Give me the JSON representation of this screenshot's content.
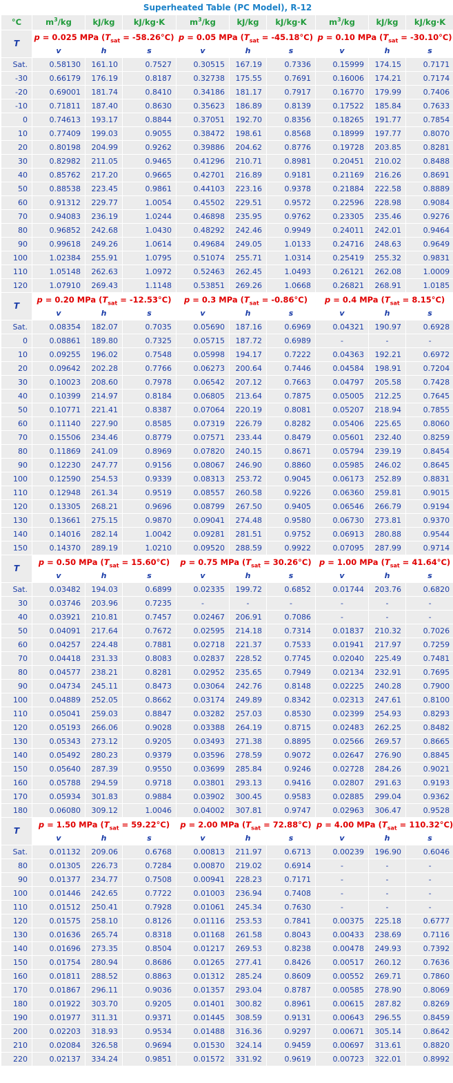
{
  "title": "Superheated Table (PC Model), R-12",
  "units": {
    "temp": "°C",
    "v_base": "m",
    "v_exp": "3",
    "v_tail": "/kg",
    "h": "kJ/kg",
    "s": "kJ/kg·K"
  },
  "labels": {
    "T": "T",
    "v": "v",
    "h": "h",
    "s": "s",
    "p": "p",
    "tsat_T": "T",
    "tsat_sub": "sat"
  },
  "blocks": [
    {
      "pressures": [
        {
          "p": "0.025 MPa",
          "tsat": "-58.26°C"
        },
        {
          "p": "0.05 MPa",
          "tsat": "-45.18°C"
        },
        {
          "p": "0.10 MPa",
          "tsat": "-30.10°C"
        }
      ],
      "rows": [
        [
          "Sat.",
          "0.58130",
          "161.10",
          "0.7527",
          "0.30515",
          "167.19",
          "0.7336",
          "0.15999",
          "174.15",
          "0.7171"
        ],
        [
          "-30",
          "0.66179",
          "176.19",
          "0.8187",
          "0.32738",
          "175.55",
          "0.7691",
          "0.16006",
          "174.21",
          "0.7174"
        ],
        [
          "-20",
          "0.69001",
          "181.74",
          "0.8410",
          "0.34186",
          "181.17",
          "0.7917",
          "0.16770",
          "179.99",
          "0.7406"
        ],
        [
          "-10",
          "0.71811",
          "187.40",
          "0.8630",
          "0.35623",
          "186.89",
          "0.8139",
          "0.17522",
          "185.84",
          "0.7633"
        ],
        [
          "0",
          "0.74613",
          "193.17",
          "0.8844",
          "0.37051",
          "192.70",
          "0.8356",
          "0.18265",
          "191.77",
          "0.7854"
        ],
        [
          "10",
          "0.77409",
          "199.03",
          "0.9055",
          "0.38472",
          "198.61",
          "0.8568",
          "0.18999",
          "197.77",
          "0.8070"
        ],
        [
          "20",
          "0.80198",
          "204.99",
          "0.9262",
          "0.39886",
          "204.62",
          "0.8776",
          "0.19728",
          "203.85",
          "0.8281"
        ],
        [
          "30",
          "0.82982",
          "211.05",
          "0.9465",
          "0.41296",
          "210.71",
          "0.8981",
          "0.20451",
          "210.02",
          "0.8488"
        ],
        [
          "40",
          "0.85762",
          "217.20",
          "0.9665",
          "0.42701",
          "216.89",
          "0.9181",
          "0.21169",
          "216.26",
          "0.8691"
        ],
        [
          "50",
          "0.88538",
          "223.45",
          "0.9861",
          "0.44103",
          "223.16",
          "0.9378",
          "0.21884",
          "222.58",
          "0.8889"
        ],
        [
          "60",
          "0.91312",
          "229.77",
          "1.0054",
          "0.45502",
          "229.51",
          "0.9572",
          "0.22596",
          "228.98",
          "0.9084"
        ],
        [
          "70",
          "0.94083",
          "236.19",
          "1.0244",
          "0.46898",
          "235.95",
          "0.9762",
          "0.23305",
          "235.46",
          "0.9276"
        ],
        [
          "80",
          "0.96852",
          "242.68",
          "1.0430",
          "0.48292",
          "242.46",
          "0.9949",
          "0.24011",
          "242.01",
          "0.9464"
        ],
        [
          "90",
          "0.99618",
          "249.26",
          "1.0614",
          "0.49684",
          "249.05",
          "1.0133",
          "0.24716",
          "248.63",
          "0.9649"
        ],
        [
          "100",
          "1.02384",
          "255.91",
          "1.0795",
          "0.51074",
          "255.71",
          "1.0314",
          "0.25419",
          "255.32",
          "0.9831"
        ],
        [
          "110",
          "1.05148",
          "262.63",
          "1.0972",
          "0.52463",
          "262.45",
          "1.0493",
          "0.26121",
          "262.08",
          "1.0009"
        ],
        [
          "120",
          "1.07910",
          "269.43",
          "1.1148",
          "0.53851",
          "269.26",
          "1.0668",
          "0.26821",
          "268.91",
          "1.0185"
        ]
      ]
    },
    {
      "pressures": [
        {
          "p": "0.20 MPa",
          "tsat": "-12.53°C"
        },
        {
          "p": "0.3 MPa",
          "tsat": "-0.86°C"
        },
        {
          "p": "0.4 MPa",
          "tsat": "8.15°C"
        }
      ],
      "rows": [
        [
          "Sat.",
          "0.08354",
          "182.07",
          "0.7035",
          "0.05690",
          "187.16",
          "0.6969",
          "0.04321",
          "190.97",
          "0.6928"
        ],
        [
          "0",
          "0.08861",
          "189.80",
          "0.7325",
          "0.05715",
          "187.72",
          "0.6989",
          "-",
          "-",
          "-"
        ],
        [
          "10",
          "0.09255",
          "196.02",
          "0.7548",
          "0.05998",
          "194.17",
          "0.7222",
          "0.04363",
          "192.21",
          "0.6972"
        ],
        [
          "20",
          "0.09642",
          "202.28",
          "0.7766",
          "0.06273",
          "200.64",
          "0.7446",
          "0.04584",
          "198.91",
          "0.7204"
        ],
        [
          "30",
          "0.10023",
          "208.60",
          "0.7978",
          "0.06542",
          "207.12",
          "0.7663",
          "0.04797",
          "205.58",
          "0.7428"
        ],
        [
          "40",
          "0.10399",
          "214.97",
          "0.8184",
          "0.06805",
          "213.64",
          "0.7875",
          "0.05005",
          "212.25",
          "0.7645"
        ],
        [
          "50",
          "0.10771",
          "221.41",
          "0.8387",
          "0.07064",
          "220.19",
          "0.8081",
          "0.05207",
          "218.94",
          "0.7855"
        ],
        [
          "60",
          "0.11140",
          "227.90",
          "0.8585",
          "0.07319",
          "226.79",
          "0.8282",
          "0.05406",
          "225.65",
          "0.8060"
        ],
        [
          "70",
          "0.15506",
          "234.46",
          "0.8779",
          "0.07571",
          "233.44",
          "0.8479",
          "0.05601",
          "232.40",
          "0.8259"
        ],
        [
          "80",
          "0.11869",
          "241.09",
          "0.8969",
          "0.07820",
          "240.15",
          "0.8671",
          "0.05794",
          "239.19",
          "0.8454"
        ],
        [
          "90",
          "0.12230",
          "247.77",
          "0.9156",
          "0.08067",
          "246.90",
          "0.8860",
          "0.05985",
          "246.02",
          "0.8645"
        ],
        [
          "100",
          "0.12590",
          "254.53",
          "0.9339",
          "0.08313",
          "253.72",
          "0.9045",
          "0.06173",
          "252.89",
          "0.8831"
        ],
        [
          "110",
          "0.12948",
          "261.34",
          "0.9519",
          "0.08557",
          "260.58",
          "0.9226",
          "0.06360",
          "259.81",
          "0.9015"
        ],
        [
          "120",
          "0.13305",
          "268.21",
          "0.9696",
          "0.08799",
          "267.50",
          "0.9405",
          "0.06546",
          "266.79",
          "0.9194"
        ],
        [
          "130",
          "0.13661",
          "275.15",
          "0.9870",
          "0.09041",
          "274.48",
          "0.9580",
          "0.06730",
          "273.81",
          "0.9370"
        ],
        [
          "140",
          "0.14016",
          "282.14",
          "1.0042",
          "0.09281",
          "281.51",
          "0.9752",
          "0.06913",
          "280.88",
          "0.9544"
        ],
        [
          "150",
          "0.14370",
          "289.19",
          "1.0210",
          "0.09520",
          "288.59",
          "0.9922",
          "0.07095",
          "287.99",
          "0.9714"
        ]
      ]
    },
    {
      "pressures": [
        {
          "p": "0.50 MPa",
          "tsat": "15.60°C"
        },
        {
          "p": "0.75 MPa",
          "tsat": "30.26°C"
        },
        {
          "p": "1.00 MPa",
          "tsat": "41.64°C"
        }
      ],
      "rows": [
        [
          "Sat.",
          "0.03482",
          "194.03",
          "0.6899",
          "0.02335",
          "199.72",
          "0.6852",
          "0.01744",
          "203.76",
          "0.6820"
        ],
        [
          "30",
          "0.03746",
          "203.96",
          "0.7235",
          "-",
          "-",
          "-",
          "-",
          "-",
          "-"
        ],
        [
          "40",
          "0.03921",
          "210.81",
          "0.7457",
          "0.02467",
          "206.91",
          "0.7086",
          "-",
          "-",
          "-"
        ],
        [
          "50",
          "0.04091",
          "217.64",
          "0.7672",
          "0.02595",
          "214.18",
          "0.7314",
          "0.01837",
          "210.32",
          "0.7026"
        ],
        [
          "60",
          "0.04257",
          "224.48",
          "0.7881",
          "0.02718",
          "221.37",
          "0.7533",
          "0.01941",
          "217.97",
          "0.7259"
        ],
        [
          "70",
          "0.04418",
          "231.33",
          "0.8083",
          "0.02837",
          "228.52",
          "0.7745",
          "0.02040",
          "225.49",
          "0.7481"
        ],
        [
          "80",
          "0.04577",
          "238.21",
          "0.8281",
          "0.02952",
          "235.65",
          "0.7949",
          "0.02134",
          "232.91",
          "0.7695"
        ],
        [
          "90",
          "0.04734",
          "245.11",
          "0.8473",
          "0.03064",
          "242.76",
          "0.8148",
          "0.02225",
          "240.28",
          "0.7900"
        ],
        [
          "100",
          "0.04889",
          "252.05",
          "0.8662",
          "0.03174",
          "249.89",
          "0.8342",
          "0.02313",
          "247.61",
          "0.8100"
        ],
        [
          "110",
          "0.05041",
          "259.03",
          "0.8847",
          "0.03282",
          "257.03",
          "0.8530",
          "0.02399",
          "254.93",
          "0.8293"
        ],
        [
          "120",
          "0.05193",
          "266.06",
          "0.9028",
          "0.03388",
          "264.19",
          "0.8715",
          "0.02483",
          "262.25",
          "0.8482"
        ],
        [
          "130",
          "0.05343",
          "273.12",
          "0.9205",
          "0.03493",
          "271.38",
          "0.8895",
          "0.02566",
          "269.57",
          "0.8665"
        ],
        [
          "140",
          "0.05492",
          "280.23",
          "0.9379",
          "0.03596",
          "278.59",
          "0.9072",
          "0.02647",
          "276.90",
          "0.8845"
        ],
        [
          "150",
          "0.05640",
          "287.39",
          "0.9550",
          "0.03699",
          "285.84",
          "0.9246",
          "0.02728",
          "284.26",
          "0.9021"
        ],
        [
          "160",
          "0.05788",
          "294.59",
          "0.9718",
          "0.03801",
          "293.13",
          "0.9416",
          "0.02807",
          "291.63",
          "0.9193"
        ],
        [
          "170",
          "0.05934",
          "301.83",
          "0.9884",
          "0.03902",
          "300.45",
          "0.9583",
          "0.02885",
          "299.04",
          "0.9362"
        ],
        [
          "180",
          "0.06080",
          "309.12",
          "1.0046",
          "0.04002",
          "307.81",
          "0.9747",
          "0.02963",
          "306.47",
          "0.9528"
        ]
      ]
    },
    {
      "pressures": [
        {
          "p": "1.50 MPa",
          "tsat": "59.22°C"
        },
        {
          "p": "2.00 MPa",
          "tsat": "72.88°C"
        },
        {
          "p": "4.00 MPa",
          "tsat": "110.32°C"
        }
      ],
      "rows": [
        [
          "Sat.",
          "0.01132",
          "209.06",
          "0.6768",
          "0.00813",
          "211.97",
          "0.6713",
          "0.00239",
          "196.90",
          "0.6046"
        ],
        [
          "80",
          "0.01305",
          "226.73",
          "0.7284",
          "0.00870",
          "219.02",
          "0.6914",
          "-",
          "-",
          "-"
        ],
        [
          "90",
          "0.01377",
          "234.77",
          "0.7508",
          "0.00941",
          "228.23",
          "0.7171",
          "-",
          "-",
          "-"
        ],
        [
          "100",
          "0.01446",
          "242.65",
          "0.7722",
          "0.01003",
          "236.94",
          "0.7408",
          "-",
          "-",
          "-"
        ],
        [
          "110",
          "0.01512",
          "250.41",
          "0.7928",
          "0.01061",
          "245.34",
          "0.7630",
          "-",
          "-",
          "-"
        ],
        [
          "120",
          "0.01575",
          "258.10",
          "0.8126",
          "0.01116",
          "253.53",
          "0.7841",
          "0.00375",
          "225.18",
          "0.6777"
        ],
        [
          "130",
          "0.01636",
          "265.74",
          "0.8318",
          "0.01168",
          "261.58",
          "0.8043",
          "0.00433",
          "238.69",
          "0.7116"
        ],
        [
          "140",
          "0.01696",
          "273.35",
          "0.8504",
          "0.01217",
          "269.53",
          "0.8238",
          "0.00478",
          "249.93",
          "0.7392"
        ],
        [
          "150",
          "0.01754",
          "280.94",
          "0.8686",
          "0.01265",
          "277.41",
          "0.8426",
          "0.00517",
          "260.12",
          "0.7636"
        ],
        [
          "160",
          "0.01811",
          "288.52",
          "0.8863",
          "0.01312",
          "285.24",
          "0.8609",
          "0.00552",
          "269.71",
          "0.7860"
        ],
        [
          "170",
          "0.01867",
          "296.11",
          "0.9036",
          "0.01357",
          "293.04",
          "0.8787",
          "0.00585",
          "278.90",
          "0.8069"
        ],
        [
          "180",
          "0.01922",
          "303.70",
          "0.9205",
          "0.01401",
          "300.82",
          "0.8961",
          "0.00615",
          "287.82",
          "0.8269"
        ],
        [
          "190",
          "0.01977",
          "311.31",
          "0.9371",
          "0.01445",
          "308.59",
          "0.9131",
          "0.00643",
          "296.55",
          "0.8459"
        ],
        [
          "200",
          "0.02203",
          "318.93",
          "0.9534",
          "0.01488",
          "316.36",
          "0.9297",
          "0.00671",
          "305.14",
          "0.8642"
        ],
        [
          "210",
          "0.02084",
          "326.58",
          "0.9694",
          "0.01530",
          "324.14",
          "0.9459",
          "0.00697",
          "313.61",
          "0.8820"
        ],
        [
          "220",
          "0.02137",
          "334.24",
          "0.9851",
          "0.01572",
          "331.92",
          "0.9619",
          "0.00723",
          "322.01",
          "0.8992"
        ]
      ]
    }
  ]
}
